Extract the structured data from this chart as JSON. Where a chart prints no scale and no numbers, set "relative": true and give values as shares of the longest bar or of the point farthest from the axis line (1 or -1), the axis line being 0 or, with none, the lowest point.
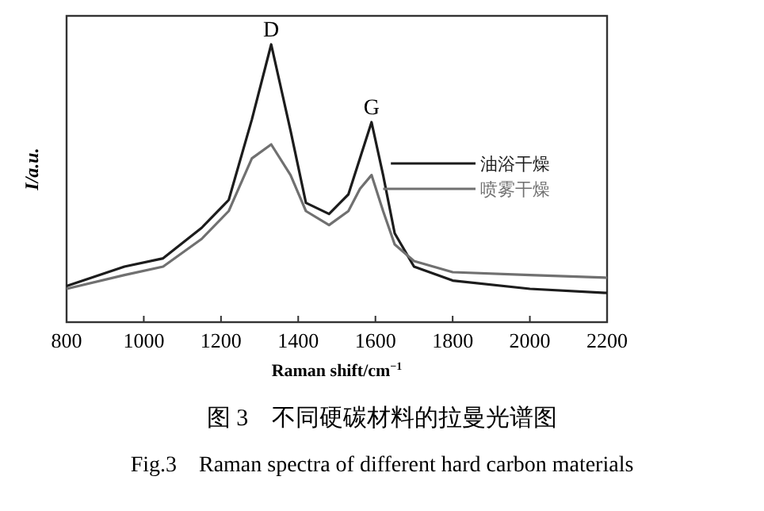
{
  "chart_data": {
    "type": "line",
    "relative": true,
    "xlabel": "Raman shift/cm$^{−1}$",
    "ylabel": "I/a.u.",
    "x": [
      800,
      950,
      1050,
      1150,
      1220,
      1280,
      1330,
      1380,
      1420,
      1480,
      1530,
      1560,
      1590,
      1620,
      1650,
      1700,
      1800,
      2000,
      2200
    ],
    "series": [
      {
        "name": "油浴干燥",
        "color": "#1c1c1c",
        "values": [
          0.13,
          0.2,
          0.23,
          0.34,
          0.44,
          0.73,
          1,
          0.69,
          0.43,
          0.39,
          0.46,
          0.59,
          0.72,
          0.53,
          0.32,
          0.2,
          0.15,
          0.12,
          0.105
        ]
      },
      {
        "name": "喷雾干燥",
        "color": "#707070",
        "values": [
          0.12,
          0.17,
          0.2,
          0.3,
          0.4,
          0.59,
          0.64,
          0.53,
          0.4,
          0.35,
          0.4,
          0.48,
          0.53,
          0.4,
          0.28,
          0.22,
          0.18,
          0.17,
          0.16
        ]
      }
    ],
    "xlim": [
      800,
      2200
    ],
    "xticks": [
      800,
      1000,
      1200,
      1400,
      1600,
      1800,
      2000,
      2200
    ],
    "grid": false,
    "legend": "right",
    "annotations": [
      {
        "text": "D",
        "x": 1330,
        "y": 1
      },
      {
        "text": "G",
        "x": 1590,
        "y": 0.72
      },
      "图 3　不同硬碳材料的拉曼光谱图",
      "Fig.3　Raman spectra of different hard carbon materials"
    ]
  }
}
